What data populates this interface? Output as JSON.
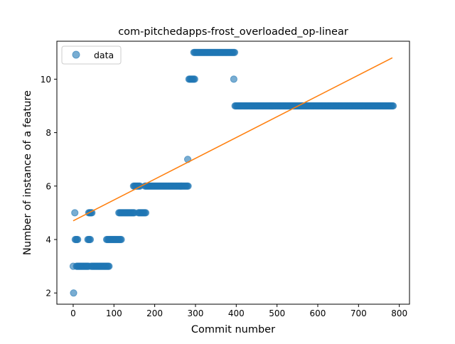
{
  "chart_data": {
    "type": "scatter",
    "title": "com-pitchedapps-frost_overloaded_op-linear",
    "xlabel": "Commit number",
    "ylabel": "Number of instance of a feature",
    "xlim": [
      -40,
      825
    ],
    "ylim": [
      1.58,
      11.42
    ],
    "xticks": [
      0,
      100,
      200,
      300,
      400,
      500,
      600,
      700,
      800
    ],
    "yticks": [
      2,
      4,
      6,
      8,
      10
    ],
    "legend": {
      "placement": "upper-left",
      "entries": [
        "data"
      ]
    },
    "grid": false,
    "colors": {
      "points": "#1f77b4",
      "fit": "#ff7f0e"
    },
    "series": [
      {
        "name": "data",
        "kind": "scatter",
        "segments": [
          {
            "x_start": 1,
            "x_end": 1,
            "y": 2
          },
          {
            "x_start": 0,
            "x_end": 0,
            "y": 3
          },
          {
            "x_start": 4,
            "x_end": 4,
            "y": 5
          },
          {
            "x_start": 5,
            "x_end": 12,
            "y": 4
          },
          {
            "x_start": 8,
            "x_end": 38,
            "y": 3
          },
          {
            "x_start": 36,
            "x_end": 42,
            "y": 4
          },
          {
            "x_start": 38,
            "x_end": 46,
            "y": 5
          },
          {
            "x_start": 44,
            "x_end": 88,
            "y": 3
          },
          {
            "x_start": 82,
            "x_end": 118,
            "y": 4
          },
          {
            "x_start": 112,
            "x_end": 150,
            "y": 5
          },
          {
            "x_start": 148,
            "x_end": 164,
            "y": 6
          },
          {
            "x_start": 160,
            "x_end": 178,
            "y": 5
          },
          {
            "x_start": 176,
            "x_end": 283,
            "y": 6
          },
          {
            "x_start": 281,
            "x_end": 281,
            "y": 7
          },
          {
            "x_start": 284,
            "x_end": 298,
            "y": 10
          },
          {
            "x_start": 296,
            "x_end": 396,
            "y": 11
          },
          {
            "x_start": 394,
            "x_end": 394,
            "y": 10
          },
          {
            "x_start": 397,
            "x_end": 785,
            "y": 9
          }
        ]
      },
      {
        "kind": "line",
        "x": [
          0,
          783
        ],
        "y": [
          4.7,
          10.8
        ]
      }
    ]
  }
}
